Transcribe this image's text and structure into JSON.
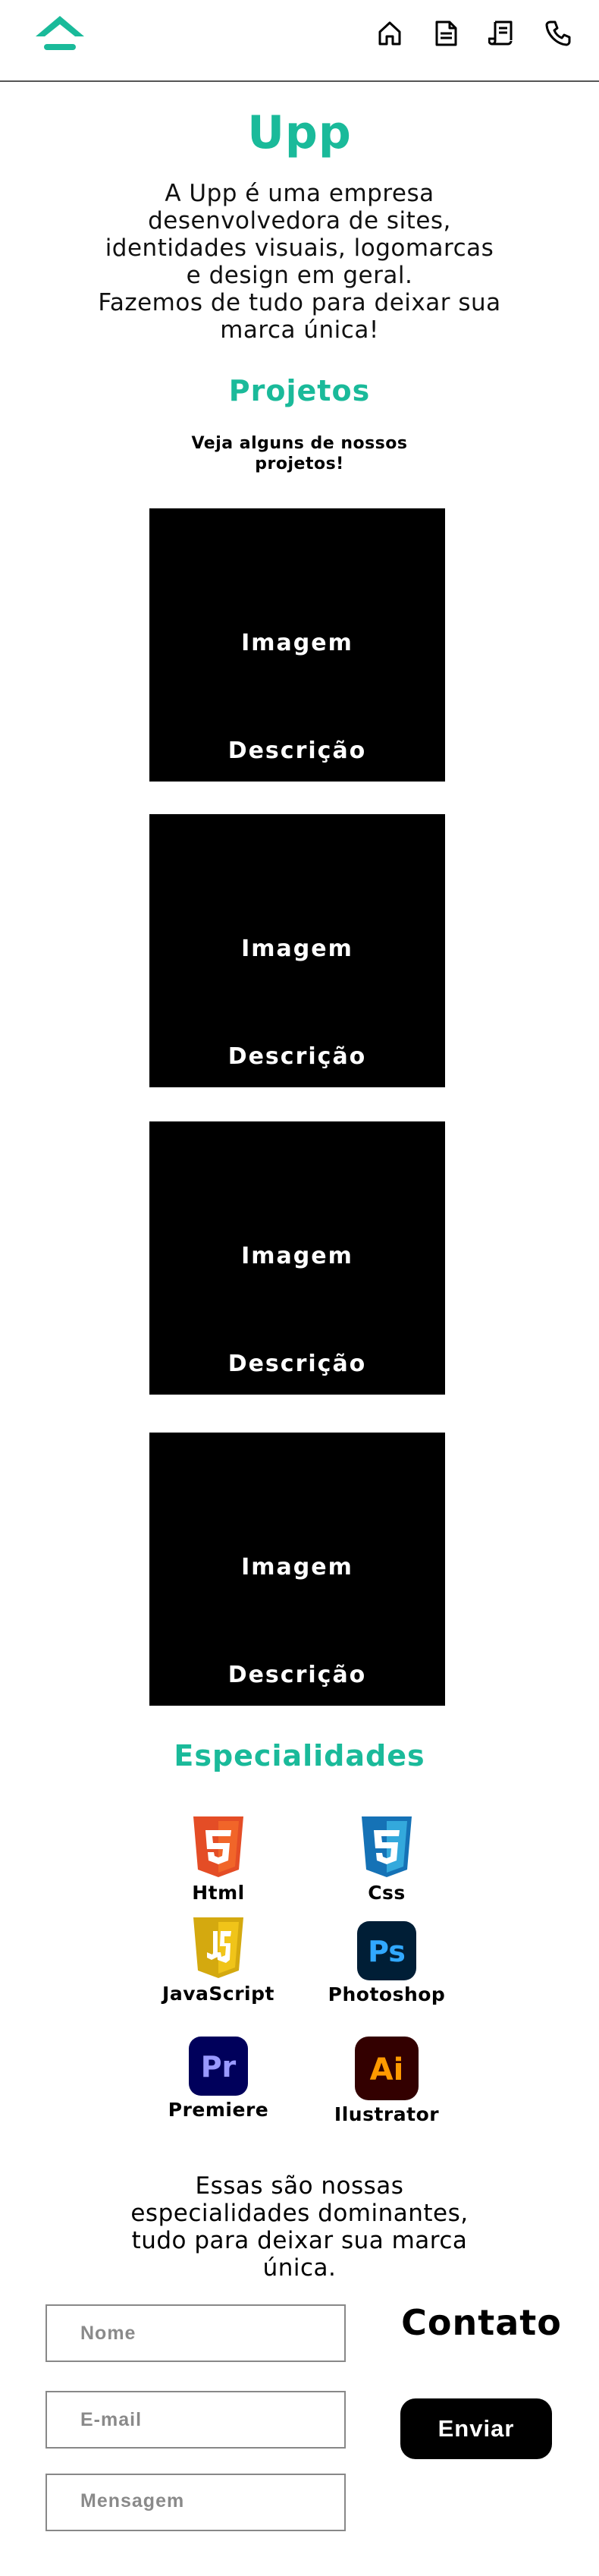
{
  "header": {
    "logo_icon": "upp-chevron-logo-icon",
    "accent_color": "#1aba9a",
    "nav": [
      {
        "name": "nav-home",
        "icon": "home-icon"
      },
      {
        "name": "nav-projects",
        "icon": "document-icon"
      },
      {
        "name": "nav-skills",
        "icon": "scroll-icon"
      },
      {
        "name": "nav-contact",
        "icon": "phone-icon"
      }
    ]
  },
  "hero": {
    "title": "Upp",
    "description": "A Upp é uma empresa desenvolvedora de sites, identidades visuais, logomarcas e design em geral.\nFazemos de tudo para deixar sua marca única!"
  },
  "projects": {
    "title": "Projetos",
    "subtitle": "Veja alguns de nossos projetos!",
    "items": [
      {
        "image": "Imagem",
        "description": "Descrição"
      },
      {
        "image": "Imagem",
        "description": "Descrição"
      },
      {
        "image": "Imagem",
        "description": "Descrição"
      },
      {
        "image": "Imagem",
        "description": "Descrição"
      }
    ]
  },
  "skills": {
    "title": "Especialidades",
    "items": [
      {
        "label": "Html",
        "icon": "html5-icon",
        "color": "#e44d26"
      },
      {
        "label": "Css",
        "icon": "css3-icon",
        "color": "#1572b6"
      },
      {
        "label": "JavaScript",
        "icon": "javascript-icon",
        "color": "#d4a90f"
      },
      {
        "label": "Photoshop",
        "icon": "photoshop-icon",
        "color": "#31a8ff"
      },
      {
        "label": "Premiere",
        "icon": "premiere-icon",
        "color": "#9999ff"
      },
      {
        "label": "Ilustrator",
        "icon": "illustrator-icon",
        "color": "#ff9a00"
      }
    ],
    "closing": "Essas são nossas especialidades dominantes, tudo para deixar sua marca única."
  },
  "contact": {
    "title": "Contato",
    "name_placeholder": "Nome",
    "email_placeholder": "E-mail",
    "message_placeholder": "Mensagem",
    "send_label": "Enviar"
  }
}
